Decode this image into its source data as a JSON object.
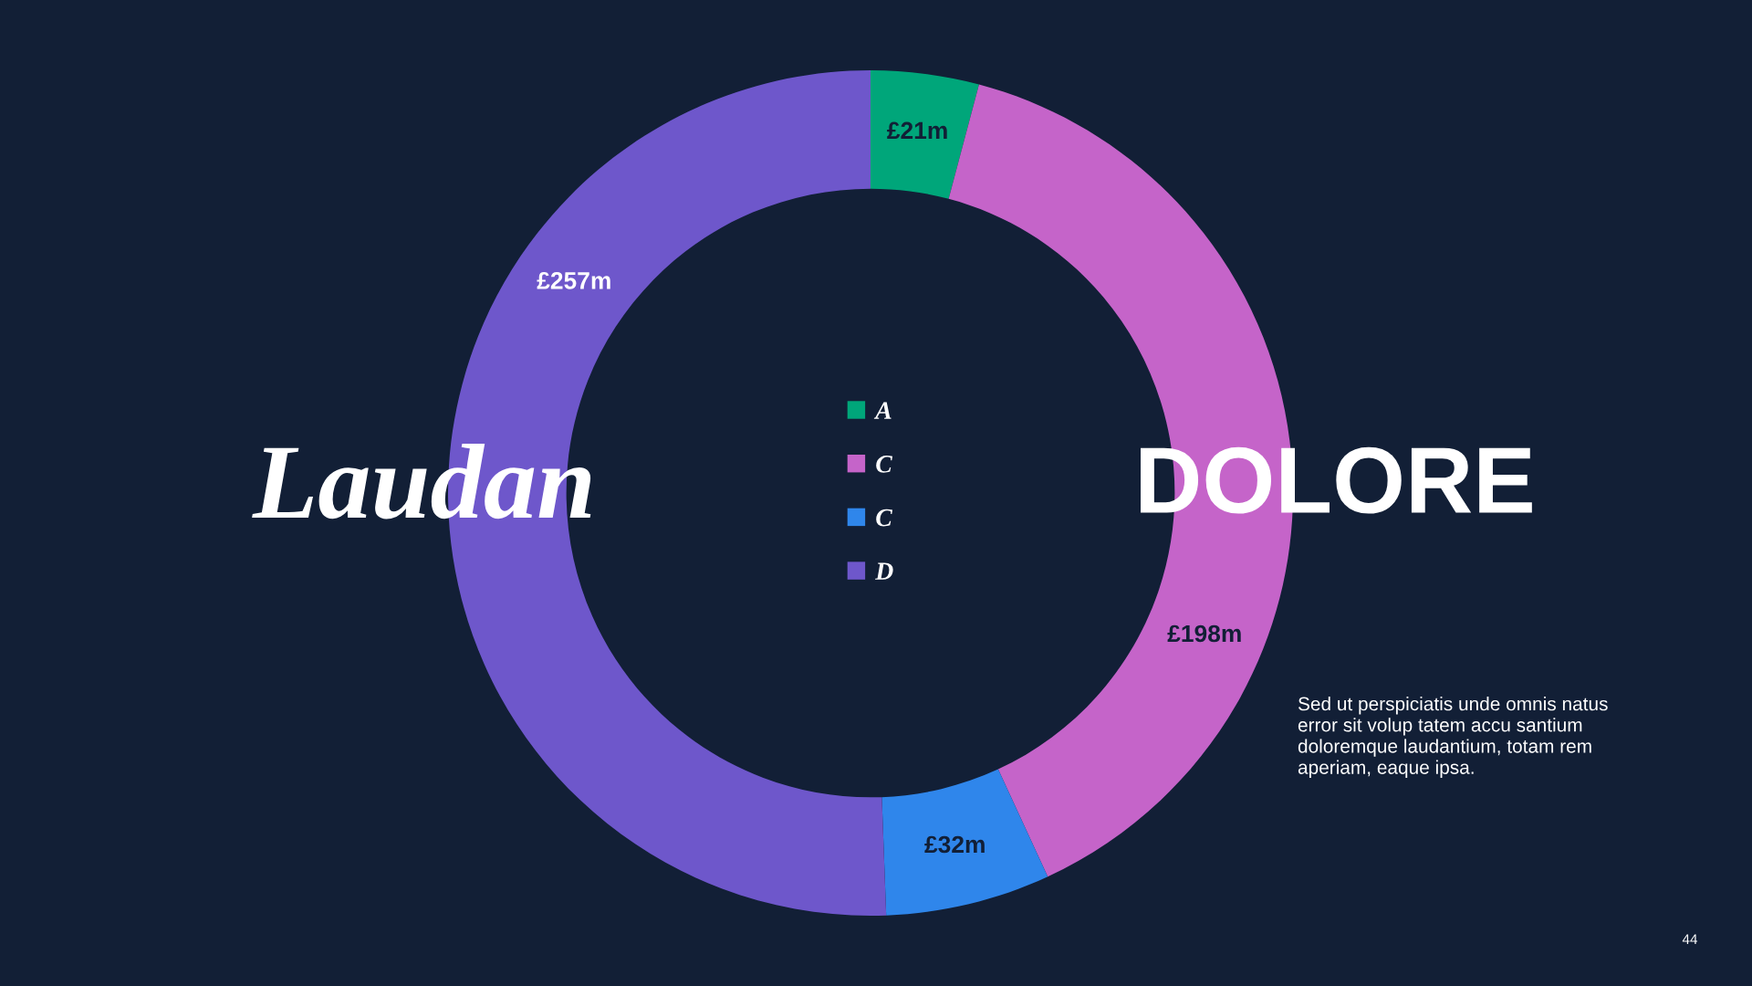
{
  "chart_data": {
    "type": "donut",
    "title": "Laudan",
    "subtitle": "DOLORE",
    "categories": [
      "A",
      "C",
      "C",
      "D"
    ],
    "values": [
      21,
      198,
      32,
      257
    ],
    "colors": [
      "#00a67a",
      "#c564c9",
      "#2f86eb",
      "#6e57cb"
    ],
    "value_labels": [
      "£21m",
      "£198m",
      "£32m",
      "£257m"
    ],
    "legend": "center",
    "annotations": [
      "Sed ut perspiciatis unde omnis natus\nerror sit volup tatem accu santium\ndoloremque laudantium, totam rem\naperiam, eaque ipsa.",
      "44"
    ]
  }
}
